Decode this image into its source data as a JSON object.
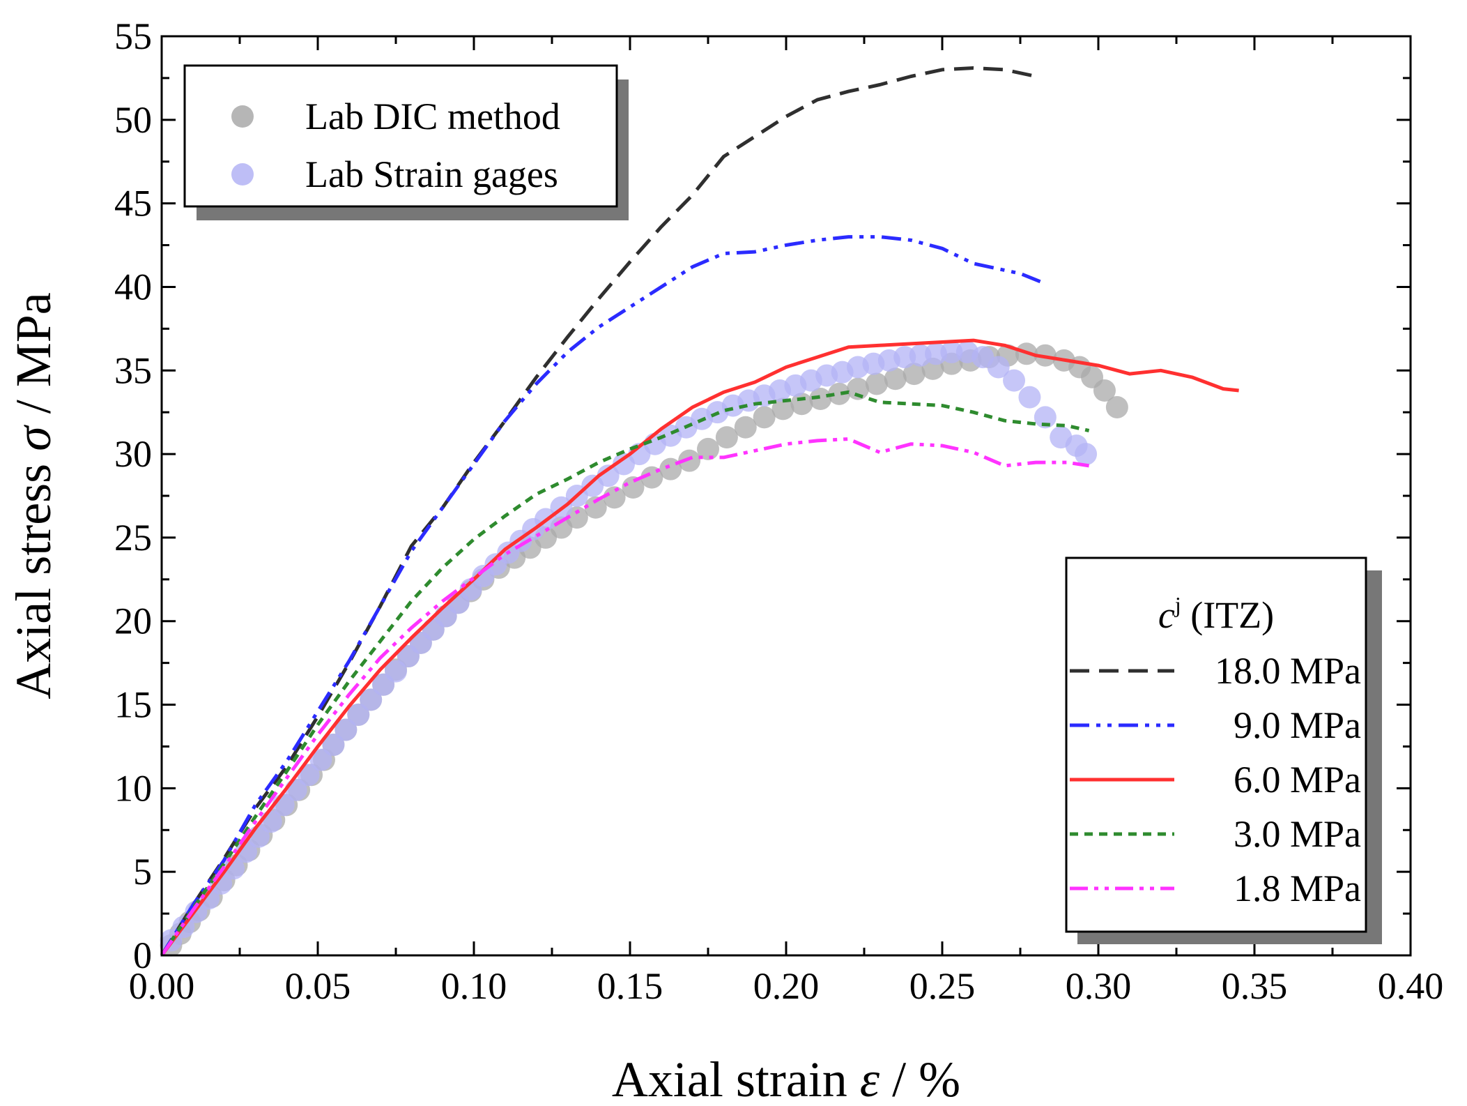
{
  "chart_data": {
    "type": "line",
    "xlabel_main": "Axial strain ",
    "xlabel_symbol": "ε",
    "xlabel_unit": " / %",
    "ylabel_main": "Axial stress ",
    "ylabel_symbol": "σ",
    "ylabel_unit": " / MPa",
    "xlim": [
      0,
      0.4
    ],
    "ylim": [
      0,
      55
    ],
    "x_ticks": [
      "0.00",
      "0.05",
      "0.10",
      "0.15",
      "0.20",
      "0.25",
      "0.30",
      "0.35",
      "0.40"
    ],
    "y_ticks": [
      "0",
      "5",
      "10",
      "15",
      "20",
      "25",
      "30",
      "35",
      "40",
      "45",
      "50",
      "55"
    ],
    "legend_lab": [
      {
        "name": "Lab DIC method",
        "color": "#a9a9a9"
      },
      {
        "name": "Lab Strain gages",
        "color": "#b3b3f5"
      }
    ],
    "legend_title_symbol": "c",
    "legend_title_sup": "j",
    "legend_title_rest": " (ITZ)",
    "scatter_series": [
      {
        "name": "Lab DIC method",
        "color": "#a9a9a9",
        "points": [
          [
            0.003,
            0.6
          ],
          [
            0.006,
            1.3
          ],
          [
            0.009,
            2.0
          ],
          [
            0.012,
            2.7
          ],
          [
            0.016,
            3.5
          ],
          [
            0.02,
            4.5
          ],
          [
            0.024,
            5.4
          ],
          [
            0.028,
            6.3
          ],
          [
            0.032,
            7.2
          ],
          [
            0.036,
            8.1
          ],
          [
            0.04,
            9.0
          ],
          [
            0.044,
            9.9
          ],
          [
            0.048,
            10.8
          ],
          [
            0.052,
            11.7
          ],
          [
            0.055,
            12.6
          ],
          [
            0.059,
            13.5
          ],
          [
            0.063,
            14.4
          ],
          [
            0.067,
            15.3
          ],
          [
            0.071,
            16.2
          ],
          [
            0.075,
            17.1
          ],
          [
            0.079,
            17.9
          ],
          [
            0.083,
            18.7
          ],
          [
            0.087,
            19.5
          ],
          [
            0.091,
            20.3
          ],
          [
            0.095,
            21.1
          ],
          [
            0.099,
            21.8
          ],
          [
            0.103,
            22.5
          ],
          [
            0.108,
            23.2
          ],
          [
            0.113,
            23.8
          ],
          [
            0.118,
            24.4
          ],
          [
            0.123,
            25.0
          ],
          [
            0.128,
            25.6
          ],
          [
            0.133,
            26.2
          ],
          [
            0.139,
            26.8
          ],
          [
            0.145,
            27.4
          ],
          [
            0.151,
            28.0
          ],
          [
            0.157,
            28.6
          ],
          [
            0.163,
            29.1
          ],
          [
            0.169,
            29.6
          ],
          [
            0.175,
            30.3
          ],
          [
            0.181,
            31.0
          ],
          [
            0.187,
            31.6
          ],
          [
            0.193,
            32.2
          ],
          [
            0.199,
            32.7
          ],
          [
            0.205,
            33.0
          ],
          [
            0.211,
            33.3
          ],
          [
            0.217,
            33.6
          ],
          [
            0.223,
            33.9
          ],
          [
            0.229,
            34.2
          ],
          [
            0.235,
            34.5
          ],
          [
            0.241,
            34.8
          ],
          [
            0.247,
            35.1
          ],
          [
            0.253,
            35.4
          ],
          [
            0.259,
            35.6
          ],
          [
            0.265,
            35.8
          ],
          [
            0.271,
            35.9
          ],
          [
            0.277,
            36.0
          ],
          [
            0.283,
            35.9
          ],
          [
            0.289,
            35.6
          ],
          [
            0.294,
            35.2
          ],
          [
            0.298,
            34.6
          ],
          [
            0.302,
            33.8
          ],
          [
            0.306,
            32.8
          ]
        ]
      },
      {
        "name": "Lab Strain gages",
        "color": "#b3b3f5",
        "points": [
          [
            0.003,
            0.9
          ],
          [
            0.007,
            1.7
          ],
          [
            0.011,
            2.6
          ],
          [
            0.015,
            3.4
          ],
          [
            0.019,
            4.3
          ],
          [
            0.023,
            5.2
          ],
          [
            0.027,
            6.2
          ],
          [
            0.031,
            7.1
          ],
          [
            0.035,
            8.0
          ],
          [
            0.039,
            9.0
          ],
          [
            0.043,
            9.9
          ],
          [
            0.047,
            10.8
          ],
          [
            0.051,
            11.7
          ],
          [
            0.055,
            12.6
          ],
          [
            0.059,
            13.5
          ],
          [
            0.063,
            14.4
          ],
          [
            0.067,
            15.3
          ],
          [
            0.071,
            16.2
          ],
          [
            0.075,
            17.0
          ],
          [
            0.079,
            17.9
          ],
          [
            0.083,
            18.7
          ],
          [
            0.087,
            19.5
          ],
          [
            0.091,
            20.3
          ],
          [
            0.095,
            21.1
          ],
          [
            0.099,
            21.9
          ],
          [
            0.103,
            22.7
          ],
          [
            0.107,
            23.4
          ],
          [
            0.111,
            24.1
          ],
          [
            0.115,
            24.8
          ],
          [
            0.119,
            25.5
          ],
          [
            0.123,
            26.1
          ],
          [
            0.128,
            26.8
          ],
          [
            0.133,
            27.5
          ],
          [
            0.138,
            28.1
          ],
          [
            0.143,
            28.7
          ],
          [
            0.148,
            29.4
          ],
          [
            0.153,
            30.0
          ],
          [
            0.158,
            30.6
          ],
          [
            0.163,
            31.1
          ],
          [
            0.168,
            31.6
          ],
          [
            0.173,
            32.1
          ],
          [
            0.178,
            32.5
          ],
          [
            0.183,
            32.9
          ],
          [
            0.188,
            33.2
          ],
          [
            0.193,
            33.5
          ],
          [
            0.198,
            33.8
          ],
          [
            0.203,
            34.1
          ],
          [
            0.208,
            34.4
          ],
          [
            0.213,
            34.7
          ],
          [
            0.218,
            34.9
          ],
          [
            0.223,
            35.2
          ],
          [
            0.228,
            35.4
          ],
          [
            0.233,
            35.6
          ],
          [
            0.238,
            35.8
          ],
          [
            0.243,
            35.9
          ],
          [
            0.248,
            36.0
          ],
          [
            0.253,
            36.1
          ],
          [
            0.258,
            36.1
          ],
          [
            0.263,
            35.8
          ],
          [
            0.268,
            35.2
          ],
          [
            0.273,
            34.4
          ],
          [
            0.278,
            33.4
          ],
          [
            0.283,
            32.2
          ],
          [
            0.288,
            31.0
          ],
          [
            0.293,
            30.5
          ],
          [
            0.296,
            30.0
          ]
        ]
      }
    ],
    "line_series": [
      {
        "name": "18.0 MPa",
        "color": "#2f2f2f",
        "dash": "28 14",
        "points": [
          [
            0,
            0
          ],
          [
            0.01,
            3.0
          ],
          [
            0.02,
            5.8
          ],
          [
            0.03,
            8.8
          ],
          [
            0.04,
            11.3
          ],
          [
            0.05,
            14.3
          ],
          [
            0.06,
            17.5
          ],
          [
            0.07,
            20.9
          ],
          [
            0.08,
            24.5
          ],
          [
            0.09,
            26.8
          ],
          [
            0.1,
            29.5
          ],
          [
            0.11,
            32.0
          ],
          [
            0.12,
            34.6
          ],
          [
            0.13,
            37.0
          ],
          [
            0.14,
            39.3
          ],
          [
            0.15,
            41.5
          ],
          [
            0.16,
            43.6
          ],
          [
            0.17,
            45.5
          ],
          [
            0.18,
            47.8
          ],
          [
            0.19,
            49.0
          ],
          [
            0.2,
            50.2
          ],
          [
            0.21,
            51.2
          ],
          [
            0.22,
            51.7
          ],
          [
            0.23,
            52.1
          ],
          [
            0.24,
            52.6
          ],
          [
            0.25,
            53.0
          ],
          [
            0.26,
            53.1
          ],
          [
            0.27,
            53.0
          ],
          [
            0.28,
            52.6
          ]
        ]
      },
      {
        "name": "9.0 MPa",
        "color": "#2b2bff",
        "dash": "28 10 6 10 6 10",
        "points": [
          [
            0,
            0
          ],
          [
            0.01,
            3.0
          ],
          [
            0.02,
            5.7
          ],
          [
            0.03,
            9.0
          ],
          [
            0.04,
            11.6
          ],
          [
            0.05,
            14.6
          ],
          [
            0.06,
            17.6
          ],
          [
            0.07,
            20.9
          ],
          [
            0.08,
            24.2
          ],
          [
            0.09,
            26.8
          ],
          [
            0.1,
            29.4
          ],
          [
            0.11,
            32.0
          ],
          [
            0.12,
            34.2
          ],
          [
            0.13,
            36.1
          ],
          [
            0.14,
            37.6
          ],
          [
            0.15,
            38.8
          ],
          [
            0.16,
            40.0
          ],
          [
            0.17,
            41.2
          ],
          [
            0.18,
            42.0
          ],
          [
            0.19,
            42.1
          ],
          [
            0.2,
            42.5
          ],
          [
            0.21,
            42.8
          ],
          [
            0.22,
            43.0
          ],
          [
            0.23,
            43.0
          ],
          [
            0.24,
            42.8
          ],
          [
            0.25,
            42.3
          ],
          [
            0.26,
            41.4
          ],
          [
            0.27,
            41.0
          ],
          [
            0.275,
            40.8
          ],
          [
            0.283,
            40.2
          ]
        ]
      },
      {
        "name": "6.0 MPa",
        "color": "#ff3030",
        "dash": "",
        "points": [
          [
            0,
            0
          ],
          [
            0.01,
            2.5
          ],
          [
            0.02,
            5.0
          ],
          [
            0.03,
            7.6
          ],
          [
            0.04,
            10.0
          ],
          [
            0.05,
            12.5
          ],
          [
            0.06,
            14.9
          ],
          [
            0.07,
            17.1
          ],
          [
            0.08,
            19.0
          ],
          [
            0.09,
            20.8
          ],
          [
            0.1,
            22.5
          ],
          [
            0.11,
            24.3
          ],
          [
            0.12,
            25.6
          ],
          [
            0.13,
            27.0
          ],
          [
            0.14,
            28.7
          ],
          [
            0.15,
            30.0
          ],
          [
            0.16,
            31.5
          ],
          [
            0.17,
            32.8
          ],
          [
            0.18,
            33.7
          ],
          [
            0.19,
            34.3
          ],
          [
            0.2,
            35.2
          ],
          [
            0.21,
            35.8
          ],
          [
            0.22,
            36.4
          ],
          [
            0.23,
            36.5
          ],
          [
            0.24,
            36.6
          ],
          [
            0.25,
            36.7
          ],
          [
            0.26,
            36.8
          ],
          [
            0.27,
            36.5
          ],
          [
            0.28,
            35.9
          ],
          [
            0.29,
            35.6
          ],
          [
            0.3,
            35.3
          ],
          [
            0.31,
            34.8
          ],
          [
            0.32,
            35.0
          ],
          [
            0.33,
            34.6
          ],
          [
            0.34,
            33.9
          ],
          [
            0.345,
            33.8
          ]
        ]
      },
      {
        "name": "3.0 MPa",
        "color": "#2e8b2e",
        "dash": "12 9",
        "points": [
          [
            0,
            0
          ],
          [
            0.01,
            2.8
          ],
          [
            0.02,
            5.5
          ],
          [
            0.03,
            8.3
          ],
          [
            0.04,
            11.0
          ],
          [
            0.05,
            13.8
          ],
          [
            0.06,
            16.4
          ],
          [
            0.07,
            18.8
          ],
          [
            0.08,
            21.2
          ],
          [
            0.09,
            23.2
          ],
          [
            0.1,
            24.9
          ],
          [
            0.11,
            26.3
          ],
          [
            0.12,
            27.6
          ],
          [
            0.13,
            28.5
          ],
          [
            0.14,
            29.5
          ],
          [
            0.15,
            30.3
          ],
          [
            0.16,
            31.0
          ],
          [
            0.17,
            31.8
          ],
          [
            0.18,
            32.6
          ],
          [
            0.19,
            33.0
          ],
          [
            0.2,
            33.2
          ],
          [
            0.21,
            33.4
          ],
          [
            0.22,
            33.7
          ],
          [
            0.23,
            33.1
          ],
          [
            0.24,
            33.0
          ],
          [
            0.25,
            32.9
          ],
          [
            0.26,
            32.5
          ],
          [
            0.27,
            32.0
          ],
          [
            0.28,
            31.8
          ],
          [
            0.29,
            31.7
          ],
          [
            0.297,
            31.4
          ]
        ]
      },
      {
        "name": "1.8 MPa",
        "color": "#ff33ff",
        "dash": "26 9 6 9 6 9",
        "points": [
          [
            0,
            0
          ],
          [
            0.01,
            2.7
          ],
          [
            0.02,
            5.3
          ],
          [
            0.03,
            8.0
          ],
          [
            0.04,
            10.6
          ],
          [
            0.05,
            13.2
          ],
          [
            0.06,
            15.6
          ],
          [
            0.07,
            17.8
          ],
          [
            0.08,
            19.6
          ],
          [
            0.09,
            21.2
          ],
          [
            0.1,
            22.6
          ],
          [
            0.11,
            24.0
          ],
          [
            0.12,
            25.1
          ],
          [
            0.13,
            26.2
          ],
          [
            0.14,
            27.3
          ],
          [
            0.15,
            28.3
          ],
          [
            0.16,
            29.1
          ],
          [
            0.17,
            29.8
          ],
          [
            0.18,
            29.8
          ],
          [
            0.19,
            30.2
          ],
          [
            0.2,
            30.6
          ],
          [
            0.21,
            30.8
          ],
          [
            0.22,
            30.9
          ],
          [
            0.23,
            30.1
          ],
          [
            0.24,
            30.6
          ],
          [
            0.25,
            30.5
          ],
          [
            0.26,
            30.1
          ],
          [
            0.27,
            29.3
          ],
          [
            0.28,
            29.5
          ],
          [
            0.29,
            29.5
          ],
          [
            0.297,
            29.3
          ]
        ]
      }
    ]
  }
}
